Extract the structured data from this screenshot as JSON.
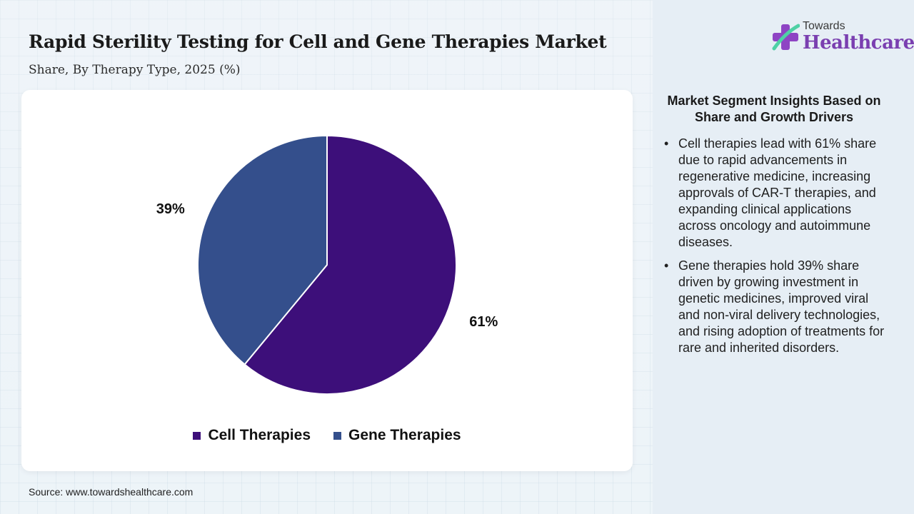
{
  "title": "Rapid Sterility Testing for Cell and Gene Therapies Market",
  "subtitle": "Share, By Therapy Type, 2025 (%)",
  "source": "Source: www.towardshealthcare.com",
  "logo": {
    "top": "Towards",
    "main": "Healthcare"
  },
  "insights": {
    "heading": "Market Segment Insights Based on Share and Growth Drivers",
    "bullets": [
      "Cell therapies lead with 61% share due to rapid advancements in regenerative medicine, increasing approvals of CAR-T therapies, and expanding clinical applications across oncology and autoimmune diseases.",
      "Gene therapies hold 39% share driven by growing investment in genetic medicines, improved viral and non-viral delivery technologies, and rising adoption of treatments for rare and inherited disorders."
    ]
  },
  "chart_data": {
    "type": "pie",
    "categories": [
      "Cell Therapies",
      "Gene Therapies"
    ],
    "values": [
      61,
      39
    ],
    "labels": [
      "61%",
      "39%"
    ],
    "colors": [
      "#3d0f7a",
      "#344f8c"
    ],
    "legend": "bottom-center"
  }
}
